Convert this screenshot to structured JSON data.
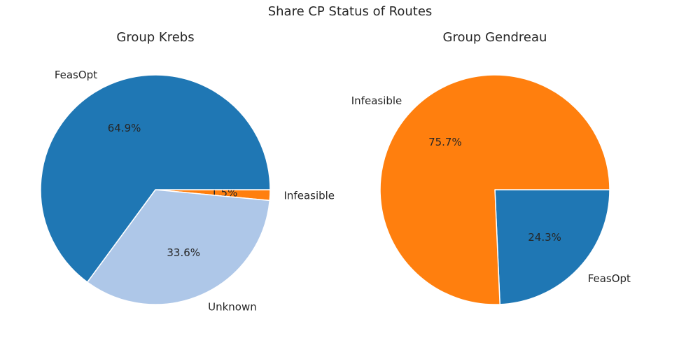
{
  "title": "Share CP Status of Routes",
  "chart_data": [
    {
      "type": "pie",
      "title": "Group Krebs",
      "labels": [
        "Infeasible",
        "Unknown",
        "FeasOpt"
      ],
      "values": [
        1.5,
        33.6,
        64.9
      ],
      "value_labels": [
        "1.5%",
        "33.6%",
        "64.9%"
      ],
      "colors": [
        "#ff7f0e",
        "#aec7e8",
        "#1f77b4"
      ],
      "start_angle_deg": 0,
      "direction": "clockwise"
    },
    {
      "type": "pie",
      "title": "Group Gendreau",
      "labels": [
        "FeasOpt",
        "Infeasible"
      ],
      "values": [
        24.3,
        75.7
      ],
      "value_labels": [
        "24.3%",
        "75.7%"
      ],
      "colors": [
        "#1f77b4",
        "#ff7f0e"
      ],
      "start_angle_deg": 0,
      "direction": "clockwise"
    }
  ]
}
